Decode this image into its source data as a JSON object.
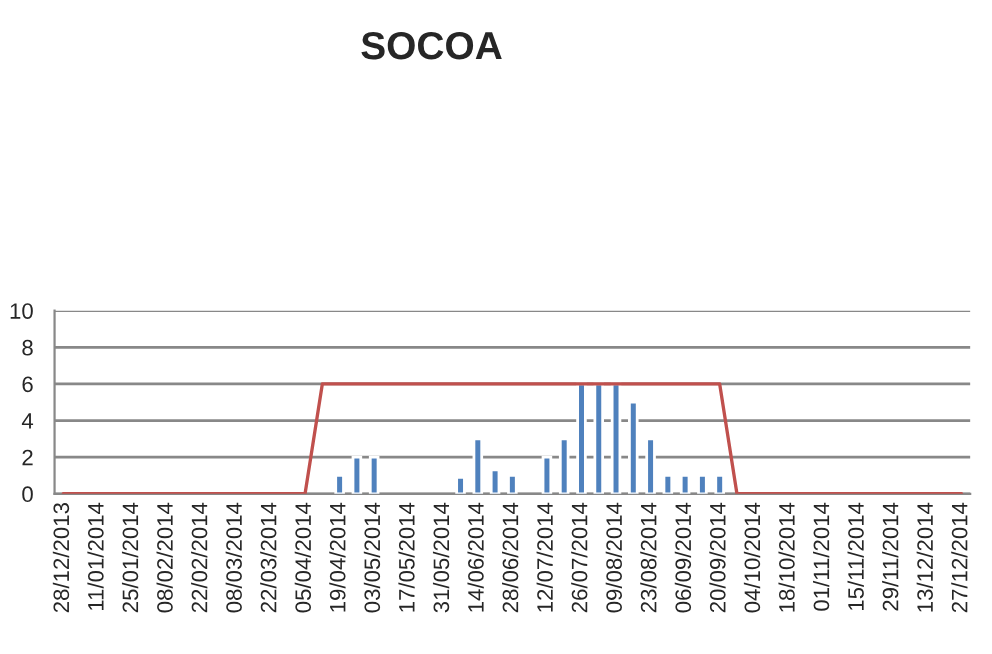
{
  "chart_data": {
    "type": "bar",
    "title": "SOCOA",
    "categories": [
      "28/12/2013",
      null,
      "11/01/2014",
      null,
      "25/01/2014",
      null,
      "08/02/2014",
      null,
      "22/02/2014",
      null,
      "08/03/2014",
      null,
      "22/03/2014",
      null,
      "05/04/2014",
      null,
      "19/04/2014",
      null,
      "03/05/2014",
      null,
      "17/05/2014",
      null,
      "31/05/2014",
      null,
      "14/06/2014",
      null,
      "28/06/2014",
      null,
      "12/07/2014",
      null,
      "26/07/2014",
      null,
      "09/08/2014",
      null,
      "23/08/2014",
      null,
      "06/09/2014",
      null,
      "20/09/2014",
      null,
      "04/10/2014",
      null,
      "18/10/2014",
      null,
      "01/11/2014",
      null,
      "15/11/2014",
      null,
      "29/11/2014",
      null,
      "13/12/2014",
      null,
      "27/12/2014"
    ],
    "series": [
      {
        "color": "#4f81bd",
        "values": [
          null,
          null,
          null,
          null,
          null,
          null,
          null,
          null,
          null,
          null,
          null,
          null,
          null,
          null,
          null,
          null,
          1,
          2,
          2,
          null,
          null,
          null,
          null,
          0.9,
          3,
          1.3,
          1,
          null,
          2,
          3,
          6,
          6,
          6,
          5,
          3,
          1,
          1,
          1,
          1,
          null,
          null,
          null,
          null,
          null,
          null,
          null,
          null,
          null,
          null,
          null,
          null,
          null,
          null
        ]
      },
      {
        "type": "line",
        "color": "#c0504d",
        "values": [
          0,
          0,
          0,
          0,
          0,
          0,
          0,
          0,
          0,
          0,
          0,
          0,
          0,
          0,
          0,
          6,
          6,
          6,
          6,
          6,
          6,
          6,
          6,
          6,
          6,
          6,
          6,
          6,
          6,
          6,
          6,
          6,
          6,
          6,
          6,
          6,
          6,
          6,
          6,
          0,
          0,
          0,
          0,
          0,
          0,
          0,
          0,
          0,
          0,
          0,
          0,
          0,
          0
        ]
      }
    ],
    "ylim": [
      0,
      10
    ],
    "yticks": [
      0,
      2,
      4,
      6,
      8,
      10
    ],
    "grid": "y",
    "legend": false
  }
}
